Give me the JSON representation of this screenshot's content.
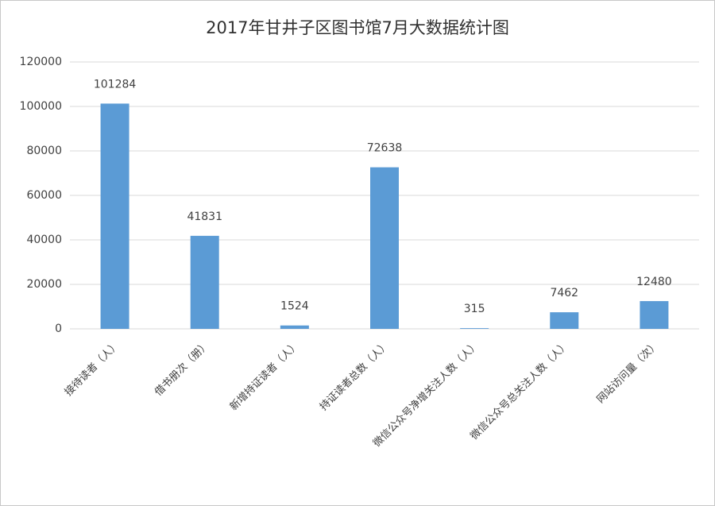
{
  "chart_data": {
    "type": "bar",
    "title": "2017年甘井子区图书馆7月大数据统计图",
    "categories": [
      "接待读者（人）",
      "借书册次（册）",
      "新增持证读者（人）",
      "持证读者总数（人）",
      "微信公众号净增关注人数（人）",
      "微信公众号总关注人数（人）",
      "网站访问量（次）"
    ],
    "values": [
      101284,
      41831,
      1524,
      72638,
      315,
      7462,
      12480
    ],
    "color": "#5b9bd5",
    "ylim": [
      0,
      120000
    ],
    "yticks": [
      0,
      20000,
      40000,
      60000,
      80000,
      100000,
      120000
    ],
    "grid": true
  }
}
